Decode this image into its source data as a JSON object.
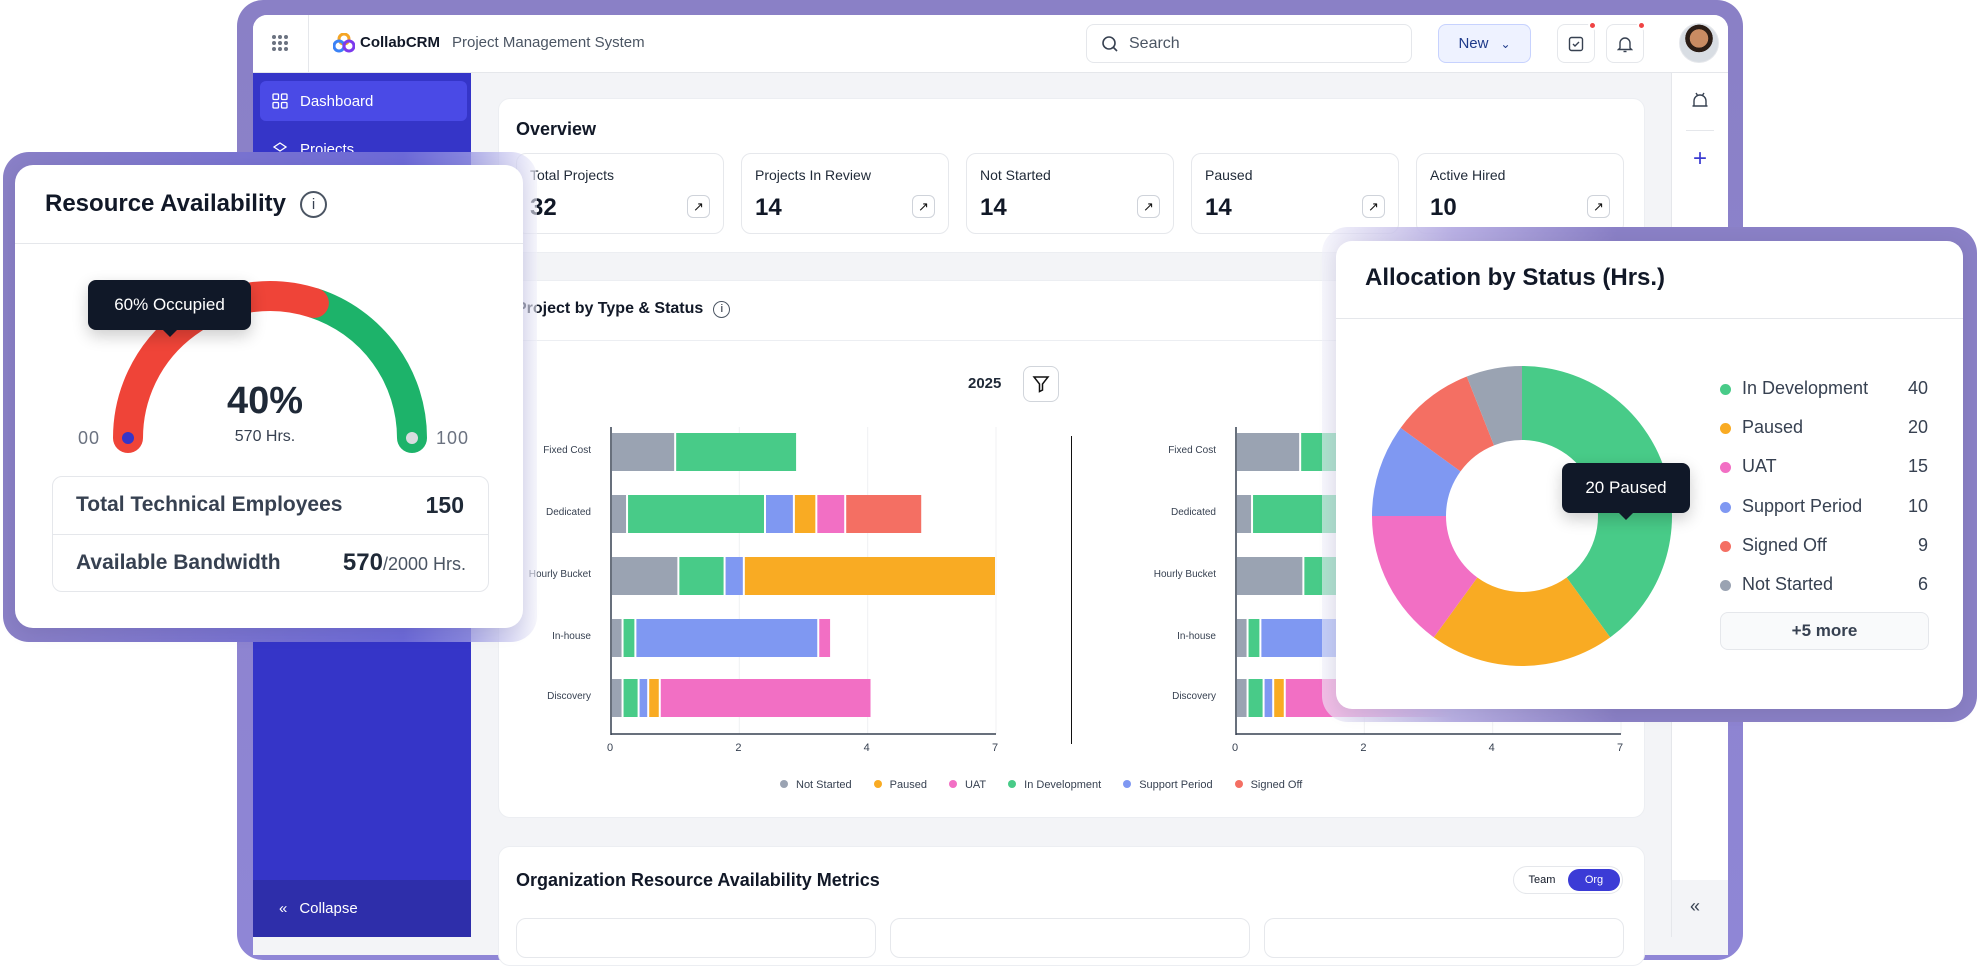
{
  "header": {
    "brand": "CollabCRM",
    "subtitle": "Project Management System",
    "search_placeholder": "Search",
    "new_label": "New"
  },
  "sidebar": {
    "items": [
      {
        "label": "Dashboard",
        "icon": "grid-icon",
        "active": true
      },
      {
        "label": "Projects",
        "icon": "layers-icon",
        "active": false
      }
    ],
    "collapse_label": "Collapse"
  },
  "overview": {
    "title": "Overview",
    "stats": [
      {
        "label": "Total Projects",
        "value": "32"
      },
      {
        "label": "Projects In Review",
        "value": "14"
      },
      {
        "label": "Not Started",
        "value": "14"
      },
      {
        "label": "Paused",
        "value": "14"
      },
      {
        "label": "Active Hired",
        "value": "10"
      }
    ]
  },
  "project_chart": {
    "title": "Project by Type & Status",
    "year": "2025"
  },
  "org": {
    "title": "Organization Resource Availability Metrics",
    "toggle": [
      "Team",
      "Org"
    ],
    "active_toggle": "Org"
  },
  "resource": {
    "title": "Resource Availability",
    "tooltip": "60% Occupied",
    "occupied_pct": 60,
    "percent": "40%",
    "hours": "570 Hrs.",
    "min_label": "00",
    "max_label": "100",
    "colors": {
      "occupied": "#ef4438",
      "available": "#1db36a"
    },
    "rows": [
      {
        "label": "Total Technical Employees",
        "value": "150",
        "suffix": ""
      },
      {
        "label": "Available Bandwidth",
        "value": "570",
        "suffix": "/2000 Hrs."
      }
    ]
  },
  "allocation": {
    "title": "Allocation by Status (Hrs.)",
    "tooltip": "20 Paused",
    "more_label": "+5 more"
  },
  "chart_data": [
    {
      "type": "bar",
      "orientation": "horizontal",
      "stacked": true,
      "title": "Project by Type & Status",
      "categories": [
        "Fixed Cost",
        "Dedicated",
        "Hourly Bucket",
        "In-house",
        "Discovery"
      ],
      "x_tick_labels": [
        "0",
        "2",
        "4",
        "7"
      ],
      "xlim": [
        0,
        6
      ],
      "legend_position": "bottom",
      "series": [
        {
          "name": "Not Started",
          "color": "#9aa3b2",
          "values": [
            1,
            0.25,
            1.05,
            0.18,
            0.18
          ]
        },
        {
          "name": "In Development",
          "color": "#48cb88",
          "values": [
            1.9,
            2.15,
            0.72,
            0.2,
            0.25
          ]
        },
        {
          "name": "Support Period",
          "color": "#7f98f2",
          "values": [
            0,
            0.45,
            0.3,
            2.85,
            0.15
          ]
        },
        {
          "name": "Paused",
          "color": "#f9ab23",
          "values": [
            0,
            0.35,
            3.93,
            0,
            0.18
          ]
        },
        {
          "name": "UAT",
          "color": "#f26fc4",
          "values": [
            0,
            0.45,
            0,
            0.2,
            3.3
          ]
        },
        {
          "name": "Signed Off",
          "color": "#f46f63",
          "values": [
            0,
            1.2,
            0,
            0,
            0
          ]
        }
      ],
      "legend": [
        {
          "name": "Not Started",
          "color": "#9aa3b2"
        },
        {
          "name": "Paused",
          "color": "#f9ab23"
        },
        {
          "name": "UAT",
          "color": "#f26fc4"
        },
        {
          "name": "In Development",
          "color": "#48cb88"
        },
        {
          "name": "Support Period",
          "color": "#7f98f2"
        },
        {
          "name": "Signed Off",
          "color": "#f46f63"
        }
      ]
    },
    {
      "type": "pie",
      "donut": true,
      "title": "Allocation by Status (Hrs.)",
      "slices": [
        {
          "name": "In Development",
          "value": 40,
          "color": "#48cb88"
        },
        {
          "name": "Paused",
          "value": 20,
          "color": "#f9ab23"
        },
        {
          "name": "UAT",
          "value": 15,
          "color": "#f26fc4"
        },
        {
          "name": "Support Period",
          "value": 10,
          "color": "#7f98f2"
        },
        {
          "name": "Signed Off",
          "value": 9,
          "color": "#f46f63"
        },
        {
          "name": "Not Started",
          "value": 6,
          "color": "#9aa3b2"
        }
      ]
    }
  ]
}
